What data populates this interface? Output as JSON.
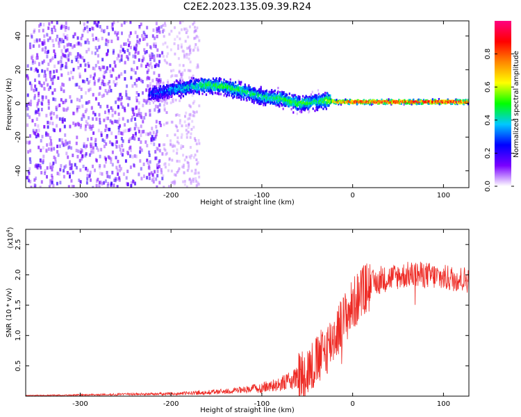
{
  "figure": {
    "title": "C2E2.2023.135.09.39.R24"
  },
  "chart_data": [
    {
      "type": "heatmap",
      "title": "C2E2.2023.135.09.39.R24",
      "xlabel": "Height of straight line (km)",
      "ylabel": "Frequency (Hz)",
      "xlim": [
        -360,
        128
      ],
      "ylim": [
        -50,
        49
      ],
      "xticks": [
        -300,
        -200,
        -100,
        0,
        100
      ],
      "yticks": [
        -40,
        -20,
        0,
        20,
        40
      ],
      "xtick_labels": [
        "-300",
        "-200",
        "-100",
        "0",
        "100"
      ],
      "ytick_labels": [
        "-40",
        "-20",
        "0",
        "20",
        "40"
      ],
      "colorbar": {
        "label": "Normalized spectral amplitude",
        "range": [
          0,
          1
        ],
        "ticks": [
          0.0,
          0.2,
          0.4,
          0.6,
          0.8
        ],
        "tick_labels": [
          "0.0",
          "0.2",
          "0.4",
          "0.6",
          "0.8"
        ],
        "colors": [
          "#ffffff",
          "#7a00ff",
          "#0000ff",
          "#00c8ff",
          "#00ff00",
          "#ffff00",
          "#ff8800",
          "#ff0000",
          "#ff0080"
        ]
      },
      "ridge": [
        {
          "x": -300,
          "freq": 8,
          "amp": 0.25
        },
        {
          "x": -220,
          "freq": 6,
          "amp": 0.25
        },
        {
          "x": -200,
          "freq": 8,
          "amp": 0.35
        },
        {
          "x": -180,
          "freq": 10,
          "amp": 0.4
        },
        {
          "x": -160,
          "freq": 11,
          "amp": 0.5
        },
        {
          "x": -140,
          "freq": 10,
          "amp": 0.5
        },
        {
          "x": -120,
          "freq": 7,
          "amp": 0.45
        },
        {
          "x": -100,
          "freq": 4,
          "amp": 0.45
        },
        {
          "x": -80,
          "freq": 3,
          "amp": 0.5
        },
        {
          "x": -60,
          "freq": 0,
          "amp": 0.5
        },
        {
          "x": -40,
          "freq": 1,
          "amp": 0.45
        },
        {
          "x": -30,
          "freq": 2,
          "amp": 0.55
        },
        {
          "x": -20,
          "freq": 1,
          "amp": 0.75
        },
        {
          "x": 0,
          "freq": 1,
          "amp": 0.9
        },
        {
          "x": 50,
          "freq": 1,
          "amp": 0.92
        },
        {
          "x": 100,
          "freq": 1,
          "amp": 0.92
        },
        {
          "x": 128,
          "freq": 1,
          "amp": 0.9
        }
      ],
      "noise_region": {
        "x_range": [
          -360,
          -210
        ],
        "freq_range": [
          -50,
          49
        ],
        "amp": 0.15
      }
    },
    {
      "type": "line",
      "xlabel": "Height of straight line (km)",
      "ylabel": "SNR (10 * v/v)",
      "y_scale_label": "(x10",
      "y_scale_exponent": "4",
      "xlim": [
        -360,
        128
      ],
      "ylim": [
        0,
        2.75
      ],
      "xticks": [
        -300,
        -200,
        -100,
        0,
        100
      ],
      "yticks": [
        0.5,
        1.0,
        1.5,
        2.0,
        2.5
      ],
      "xtick_labels": [
        "-300",
        "-200",
        "-100",
        "0",
        "100"
      ],
      "ytick_labels": [
        "0.5",
        "1.0",
        "1.5",
        "2.0",
        "2.5"
      ],
      "series": [
        {
          "name": "SNR",
          "color": "#ee2a24",
          "x": [
            -360,
            -300,
            -250,
            -200,
            -180,
            -150,
            -120,
            -100,
            -80,
            -60,
            -50,
            -40,
            -30,
            -20,
            -10,
            0,
            10,
            20,
            30,
            40,
            60,
            80,
            100,
            128
          ],
          "y": [
            0.01,
            0.02,
            0.03,
            0.04,
            0.05,
            0.07,
            0.1,
            0.14,
            0.2,
            0.3,
            0.42,
            0.55,
            0.75,
            1.0,
            1.25,
            1.5,
            1.7,
            1.85,
            1.9,
            1.95,
            2.0,
            2.0,
            1.95,
            1.92
          ]
        }
      ]
    }
  ]
}
